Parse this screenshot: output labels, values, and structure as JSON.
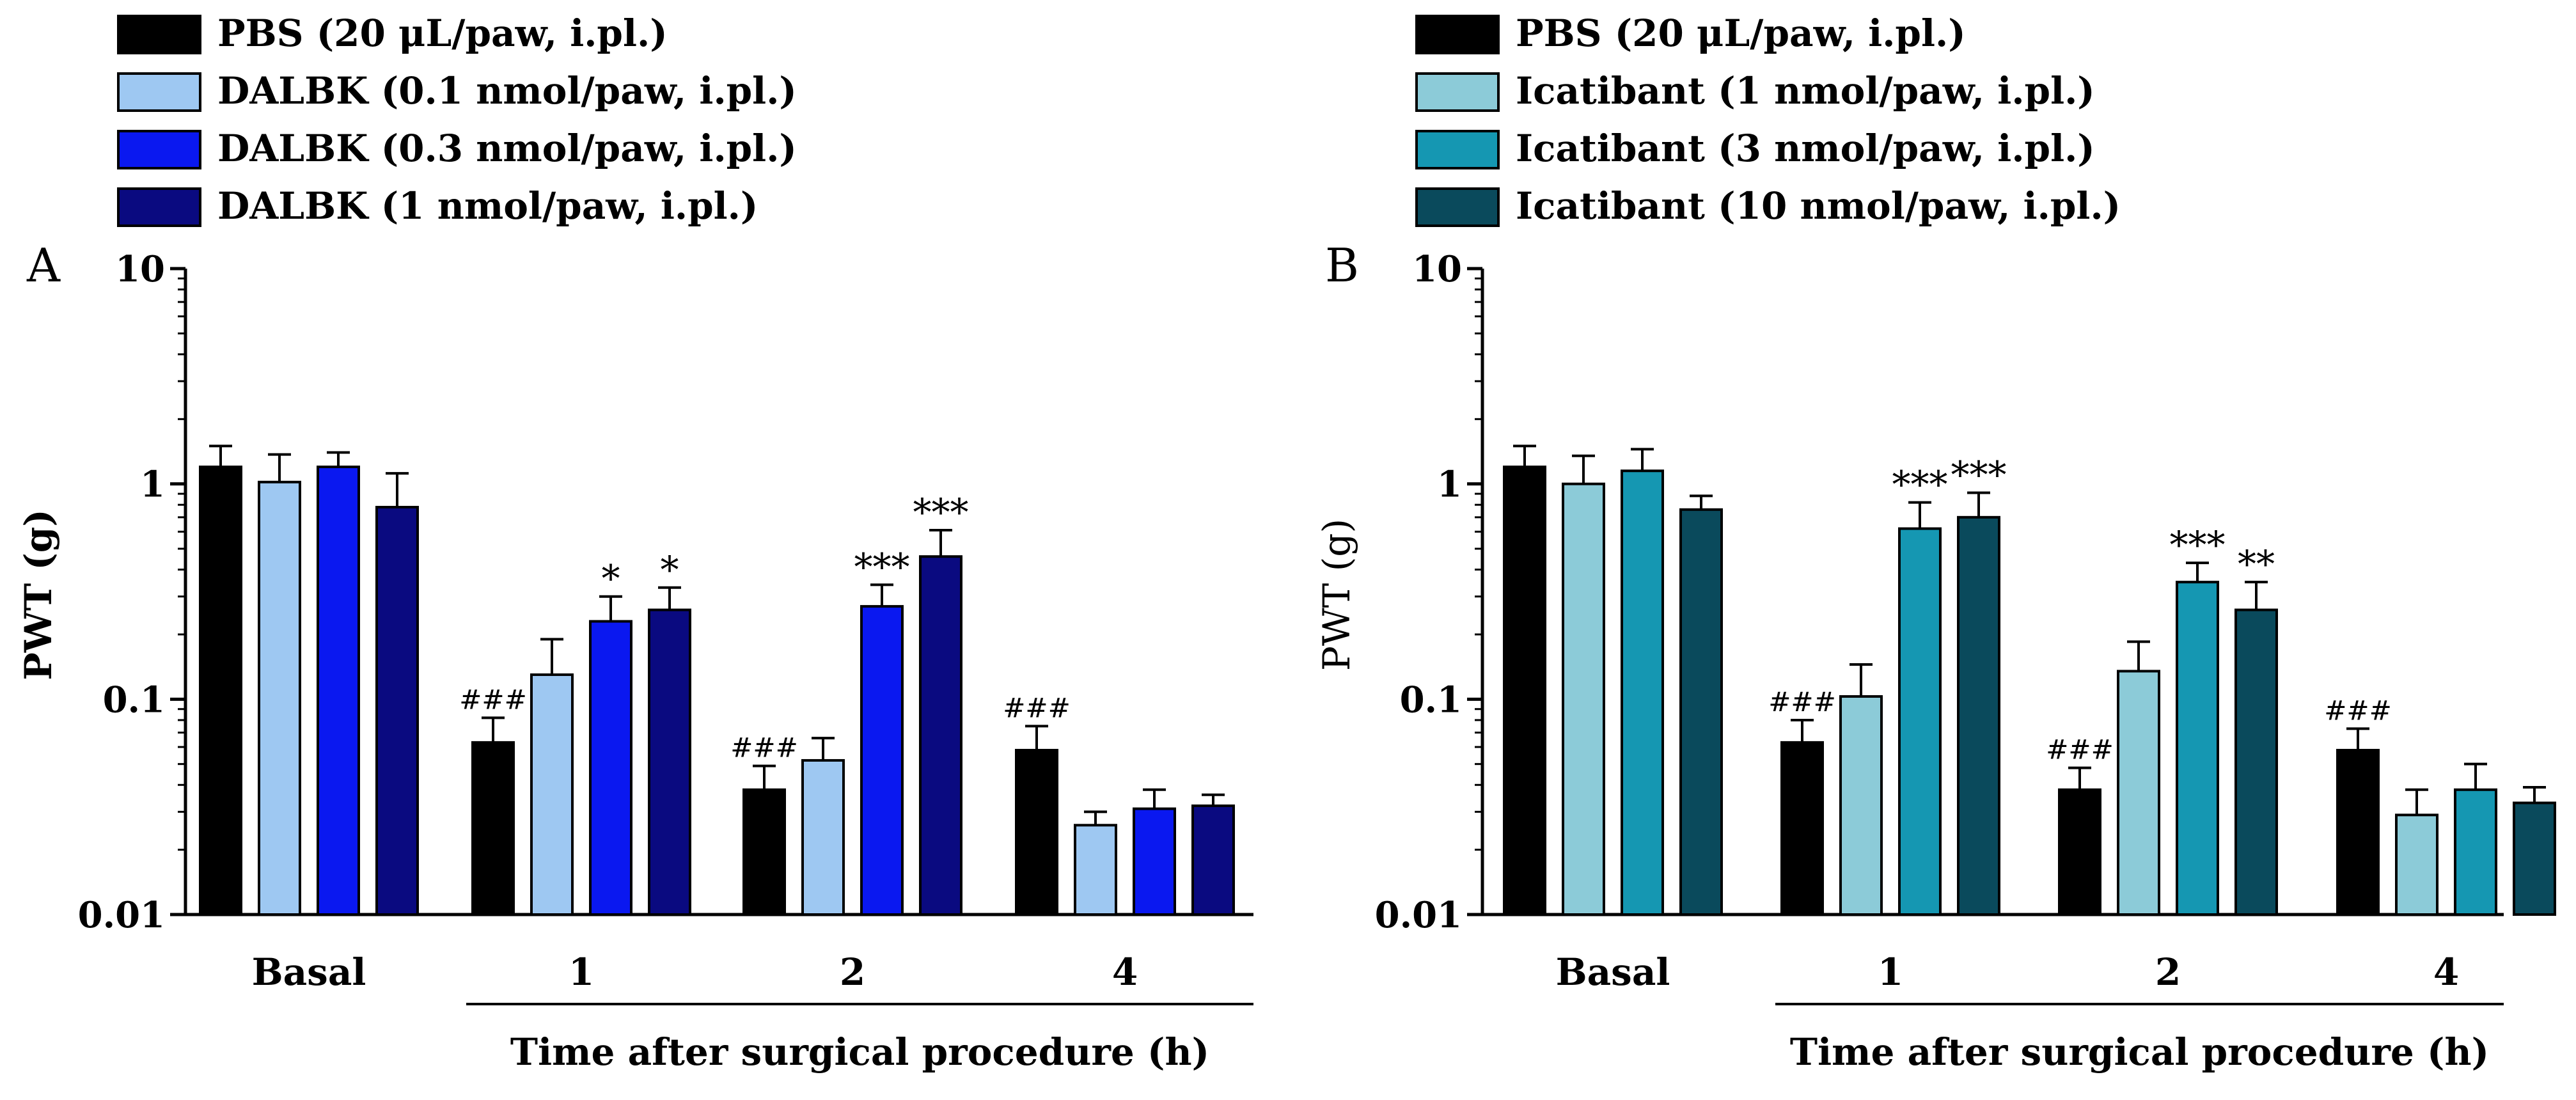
{
  "chart_data": [
    {
      "panel_label": "A",
      "type": "bar",
      "yscale": "log",
      "ylim": [
        0.01,
        10
      ],
      "ylabel": "PWT (g)",
      "yticks": [
        "0.01",
        "0.1",
        "1",
        "10"
      ],
      "xlabel": "Time after surgical procedure (h)",
      "categories": [
        "Basal",
        "1",
        "2",
        "4"
      ],
      "legend": [
        "PBS (20 μL/paw, i.pl.)",
        "DALBK (0.1 nmol/paw, i.pl.)",
        "DALBK (0.3 nmol/paw, i.pl.)",
        "DALBK (1 nmol/paw, i.pl.)"
      ],
      "series": [
        {
          "name": "PBS (20 μL/paw, i.pl.)",
          "color": "#000000",
          "values": [
            1.2,
            0.063,
            0.038,
            0.058
          ],
          "errors": [
            1.5,
            0.082,
            0.049,
            0.075
          ],
          "annotations": [
            "",
            "###",
            "###",
            "###"
          ]
        },
        {
          "name": "DALBK (0.1 nmol/paw, i.pl.)",
          "color": "#9ec8f2",
          "values": [
            1.02,
            0.13,
            0.052,
            0.026
          ],
          "errors": [
            1.37,
            0.19,
            0.066,
            0.03
          ],
          "annotations": [
            "",
            "",
            "",
            ""
          ]
        },
        {
          "name": "DALBK (0.3 nmol/paw, i.pl.)",
          "color": "#0a18f0",
          "values": [
            1.2,
            0.23,
            0.27,
            0.031
          ],
          "errors": [
            1.4,
            0.3,
            0.34,
            0.038
          ],
          "annotations": [
            "",
            "*",
            "***",
            ""
          ]
        },
        {
          "name": "DALBK (1 nmol/paw, i.pl.)",
          "color": "#0a0a80",
          "values": [
            0.78,
            0.26,
            0.46,
            0.032
          ],
          "errors": [
            1.12,
            0.33,
            0.61,
            0.036
          ],
          "annotations": [
            "",
            "*",
            "***",
            ""
          ]
        }
      ]
    },
    {
      "panel_label": "B",
      "type": "bar",
      "yscale": "log",
      "ylim": [
        0.01,
        10
      ],
      "ylabel": "PWT (g)",
      "yticks": [
        "0.01",
        "0.1",
        "1",
        "10"
      ],
      "xlabel": "Time after surgical procedure (h)",
      "categories": [
        "Basal",
        "1",
        "2",
        "4"
      ],
      "legend": [
        "PBS (20 μL/paw, i.pl.)",
        "Icatibant (1 nmol/paw, i.pl.)",
        "Icatibant (3 nmol/paw, i.pl.)",
        "Icatibant (10 nmol/paw, i.pl.)"
      ],
      "series": [
        {
          "name": "PBS (20 μL/paw, i.pl.)",
          "color": "#000000",
          "values": [
            1.2,
            0.063,
            0.038,
            0.058
          ],
          "errors": [
            1.5,
            0.08,
            0.048,
            0.073
          ],
          "annotations": [
            "",
            "###",
            "###",
            "###"
          ]
        },
        {
          "name": "Icatibant (1 nmol/paw, i.pl.)",
          "color": "#8ccbd8",
          "values": [
            1.0,
            0.103,
            0.135,
            0.029
          ],
          "errors": [
            1.35,
            0.145,
            0.185,
            0.038
          ],
          "annotations": [
            "",
            "",
            "",
            ""
          ]
        },
        {
          "name": "Icatibant (3 nmol/paw, i.pl.)",
          "color": "#1597b2",
          "values": [
            1.15,
            0.62,
            0.35,
            0.038
          ],
          "errors": [
            1.45,
            0.82,
            0.43,
            0.05
          ],
          "annotations": [
            "",
            "***",
            "***",
            ""
          ]
        },
        {
          "name": "Icatibant (10 nmol/paw, i.pl.)",
          "color": "#0a4a5c",
          "values": [
            0.76,
            0.7,
            0.26,
            0.033
          ],
          "errors": [
            0.88,
            0.91,
            0.35,
            0.039
          ],
          "annotations": [
            "",
            "***",
            "**",
            ""
          ]
        }
      ]
    }
  ]
}
